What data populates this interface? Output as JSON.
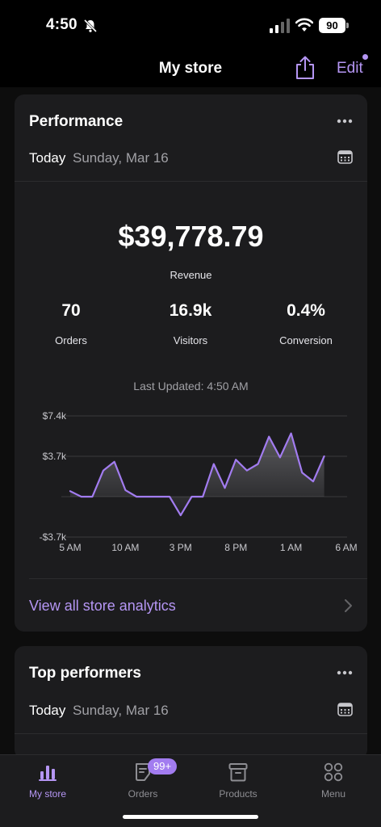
{
  "status": {
    "time": "4:50",
    "battery": "90"
  },
  "header": {
    "title": "My store",
    "edit_label": "Edit"
  },
  "performance": {
    "title": "Performance",
    "date_label": "Today",
    "date_value": "Sunday, Mar 16",
    "revenue": "$39,778.79",
    "revenue_label": "Revenue",
    "metrics": [
      {
        "value": "70",
        "label": "Orders"
      },
      {
        "value": "16.9k",
        "label": "Visitors"
      },
      {
        "value": "0.4%",
        "label": "Conversion"
      }
    ],
    "last_updated": "Last Updated: 4:50 AM",
    "link_label": "View all store analytics"
  },
  "chart_data": {
    "type": "area",
    "y_ticks": [
      "$7.4k",
      "$3.7k",
      "-$3.7k"
    ],
    "y_tick_values": [
      7400,
      3700,
      -3700
    ],
    "ylim": [
      -3700,
      7400
    ],
    "x_tick_labels": [
      "5 AM",
      "10 AM",
      "3 PM",
      "8 PM",
      "1 AM",
      "6 AM"
    ],
    "x_tick_hours": [
      0,
      5,
      10,
      15,
      20,
      25
    ],
    "xlim": [
      0,
      25
    ],
    "series": [
      {
        "x": [
          0,
          1,
          2,
          3,
          4,
          5,
          6,
          7,
          8,
          9,
          10,
          11,
          12,
          13,
          14,
          15,
          16,
          17,
          18,
          19,
          20,
          21,
          22,
          23
        ],
        "values": [
          500,
          0,
          0,
          2400,
          3200,
          600,
          0,
          0,
          0,
          0,
          -1700,
          0,
          0,
          3000,
          800,
          3400,
          2400,
          3000,
          5500,
          3600,
          5800,
          2200,
          1400,
          3700
        ]
      }
    ],
    "line_color": "#a27cf0",
    "grid": true
  },
  "top_performers": {
    "title": "Top performers",
    "date_label": "Today",
    "date_value": "Sunday, Mar 16"
  },
  "tabs": [
    {
      "label": "My store",
      "icon": "bar-chart-icon",
      "active": true
    },
    {
      "label": "Orders",
      "icon": "orders-icon",
      "badge": "99+"
    },
    {
      "label": "Products",
      "icon": "archive-box-icon"
    },
    {
      "label": "Menu",
      "icon": "grid-circles-icon"
    }
  ]
}
